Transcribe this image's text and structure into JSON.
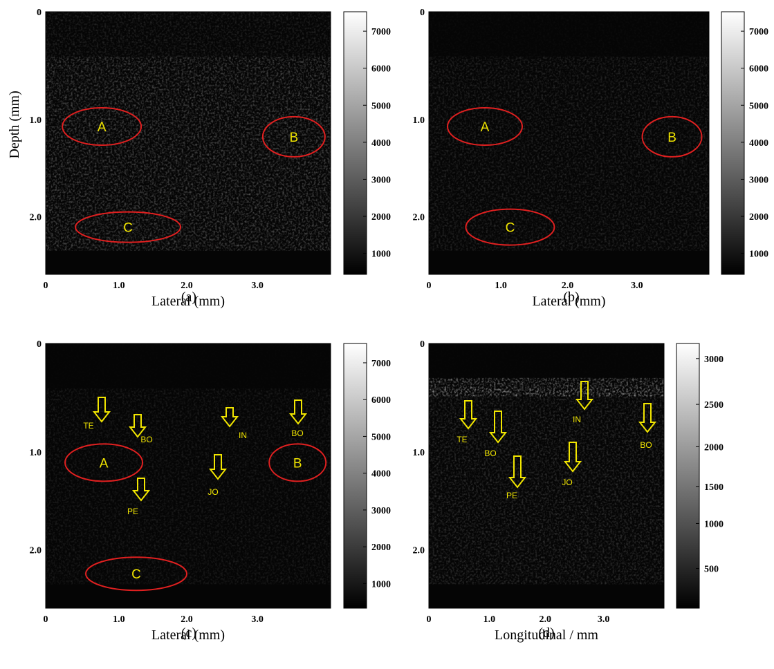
{
  "panels": [
    {
      "caption": "(a)",
      "x_label": "Lateral (mm)",
      "y_label": "Depth (mm)",
      "x_ticks": [
        "0",
        "1.0",
        "2.0",
        "3.0"
      ],
      "y_ticks": [
        "0",
        "1.0",
        "2.0"
      ],
      "colorbar_ticks": [
        "7000",
        "6000",
        "5000",
        "4000",
        "3000",
        "2000",
        "1000"
      ],
      "regions": [
        "A",
        "B",
        "C"
      ],
      "arrows": []
    },
    {
      "caption": "(b)",
      "x_label": "Lateral (mm)",
      "x_ticks": [
        "0",
        "1.0",
        "2.0",
        "3.0"
      ],
      "y_ticks": [
        "0",
        "1.0",
        "2.0"
      ],
      "colorbar_ticks": [
        "7000",
        "6000",
        "5000",
        "4000",
        "3000",
        "2000",
        "1000"
      ],
      "regions": [
        "A",
        "B",
        "C"
      ],
      "arrows": []
    },
    {
      "caption": "(c)",
      "x_label": "Lateral (mm)",
      "x_ticks": [
        "0",
        "1.0",
        "2.0",
        "3.0"
      ],
      "y_ticks": [
        "0",
        "1.0",
        "2.0"
      ],
      "colorbar_ticks": [
        "7000",
        "6000",
        "5000",
        "4000",
        "3000",
        "2000",
        "1000"
      ],
      "regions": [
        "A",
        "B",
        "C"
      ],
      "arrows": [
        "TE",
        "BO",
        "IN",
        "BO",
        "JO",
        "PE"
      ]
    },
    {
      "caption": "(d)",
      "x_label": "Longitudinal / mm",
      "x_ticks": [
        "0",
        "1.0",
        "2.0",
        "3.0"
      ],
      "y_ticks": [
        "0",
        "1.0",
        "2.0"
      ],
      "colorbar_ticks": [
        "3000",
        "2500",
        "2000",
        "1500",
        "1000",
        "500"
      ],
      "regions": [],
      "arrows": [
        "TE",
        "BO",
        "PE",
        "JO",
        "IN",
        "BO"
      ]
    }
  ]
}
